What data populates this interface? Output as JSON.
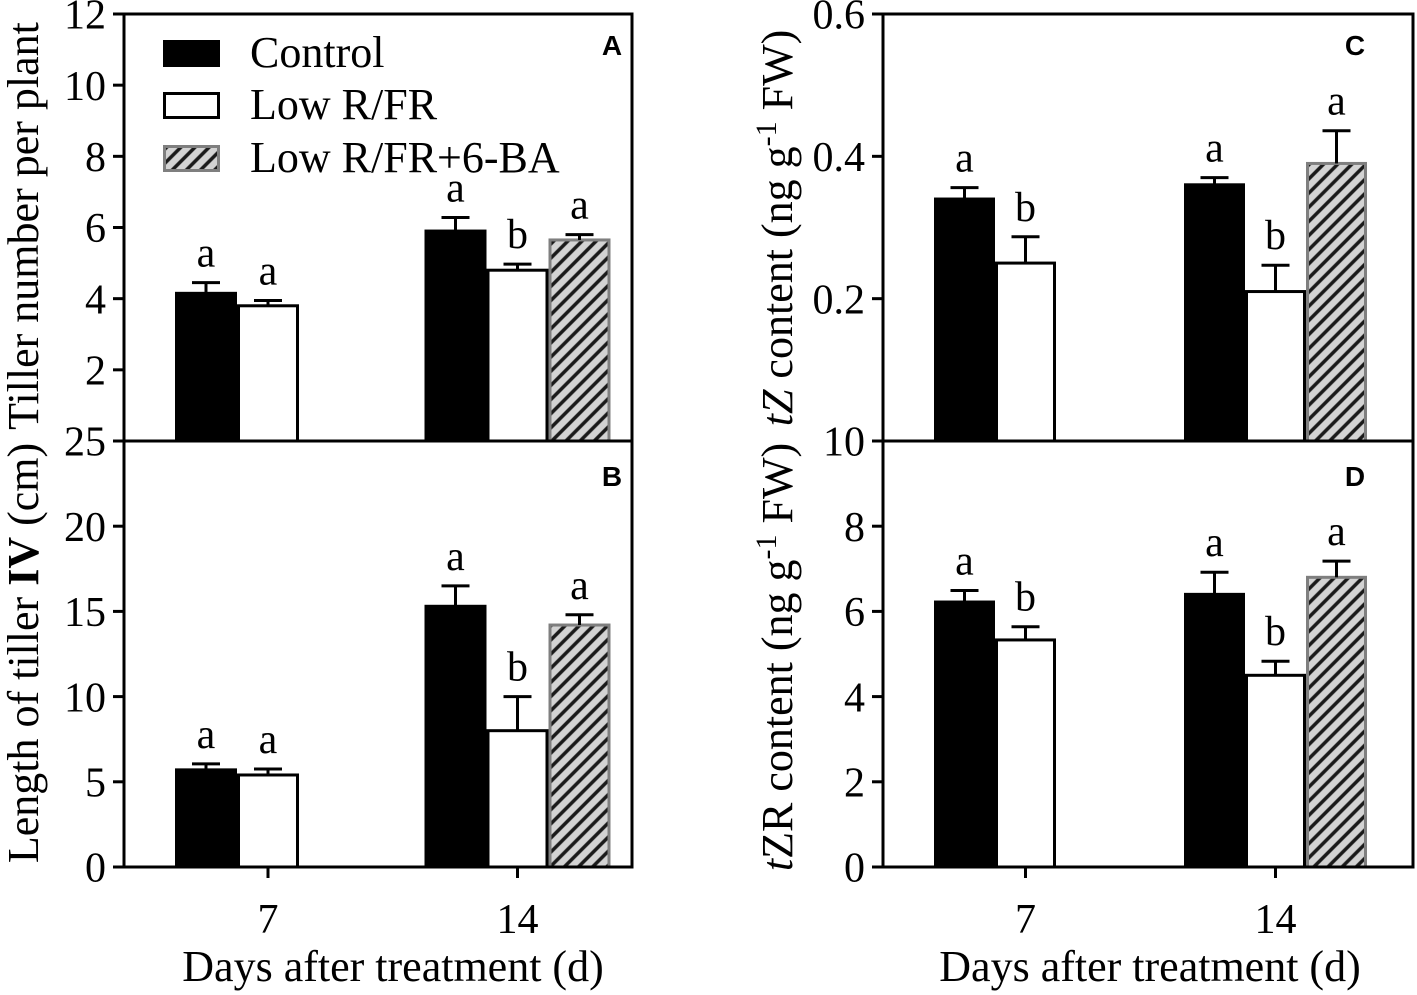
{
  "colors": {
    "control": "#000000",
    "low_rfr": "#ffffff",
    "hatch_fill": "#d3d3d3",
    "hatch_line": "#1a1a1a",
    "hatch_border": "#7f7f7f",
    "axis": "#000000"
  },
  "chart_data": [
    {
      "panel": "A",
      "type": "bar",
      "categories": [
        "7",
        "14"
      ],
      "series": [
        {
          "name": "Control",
          "values": [
            4.15,
            5.9
          ],
          "errors": [
            0.3,
            0.38
          ],
          "letters": [
            "a",
            "a"
          ]
        },
        {
          "name": "Low R/FR",
          "values": [
            3.8,
            4.8
          ],
          "errors": [
            0.15,
            0.17
          ],
          "letters": [
            "a",
            "b"
          ]
        },
        {
          "name": "Low R/FR+6-BA",
          "values": [
            null,
            5.65
          ],
          "errors": [
            null,
            0.15
          ],
          "letters": [
            null,
            "a"
          ]
        }
      ],
      "ylabel": [
        "Tiller number per plant"
      ],
      "xlabel": "",
      "ylim": [
        0,
        12
      ],
      "yticks": [
        2,
        4,
        6,
        8,
        10,
        12
      ],
      "legend": "top-left"
    },
    {
      "panel": "B",
      "type": "bar",
      "categories": [
        "7",
        "14"
      ],
      "series": [
        {
          "name": "Control",
          "values": [
            5.7,
            15.3
          ],
          "errors": [
            0.35,
            1.2
          ],
          "letters": [
            "a",
            "a"
          ]
        },
        {
          "name": "Low R/FR",
          "values": [
            5.4,
            8.0
          ],
          "errors": [
            0.35,
            2.0
          ],
          "letters": [
            "a",
            "b"
          ]
        },
        {
          "name": "Low R/FR+6-BA",
          "values": [
            null,
            14.2
          ],
          "errors": [
            null,
            0.6
          ],
          "letters": [
            null,
            "a"
          ]
        }
      ],
      "ylabel": [
        "Length of tiller ",
        "IV",
        " (cm)"
      ],
      "xlabel": "Days after treatment (d)",
      "ylim": [
        0,
        25
      ],
      "yticks": [
        0,
        5,
        10,
        15,
        20,
        25
      ]
    },
    {
      "panel": "C",
      "type": "bar",
      "categories": [
        "7",
        "14"
      ],
      "series": [
        {
          "name": "Control",
          "values": [
            0.34,
            0.36
          ],
          "errors": [
            0.016,
            0.01
          ],
          "letters": [
            "a",
            "a"
          ]
        },
        {
          "name": "Low R/FR",
          "values": [
            0.25,
            0.21
          ],
          "errors": [
            0.037,
            0.037
          ],
          "letters": [
            "b",
            "b"
          ]
        },
        {
          "name": "Low R/FR+6-BA",
          "values": [
            null,
            0.39
          ],
          "errors": [
            null,
            0.046
          ],
          "letters": [
            null,
            "a"
          ]
        }
      ],
      "ylabel": [
        "tZ",
        " content (ng g",
        "-1",
        " FW)"
      ],
      "xlabel": "",
      "ylim": [
        0,
        0.6
      ],
      "yticks": [
        0.2,
        0.4,
        0.6
      ]
    },
    {
      "panel": "D",
      "type": "bar",
      "categories": [
        "7",
        "14"
      ],
      "series": [
        {
          "name": "Control",
          "values": [
            6.22,
            6.4
          ],
          "errors": [
            0.27,
            0.52
          ],
          "letters": [
            "a",
            "a"
          ]
        },
        {
          "name": "Low R/FR",
          "values": [
            5.33,
            4.5
          ],
          "errors": [
            0.31,
            0.33
          ],
          "letters": [
            "b",
            "b"
          ]
        },
        {
          "name": "Low R/FR+6-BA",
          "values": [
            null,
            6.8
          ],
          "errors": [
            null,
            0.38
          ],
          "letters": [
            null,
            "a"
          ]
        }
      ],
      "ylabel": [
        "t",
        "ZR content (ng g",
        "-1",
        " FW)"
      ],
      "xlabel": "Days after treatment (d)",
      "ylim": [
        0,
        10
      ],
      "yticks": [
        0,
        2,
        4,
        6,
        8,
        10
      ]
    }
  ]
}
